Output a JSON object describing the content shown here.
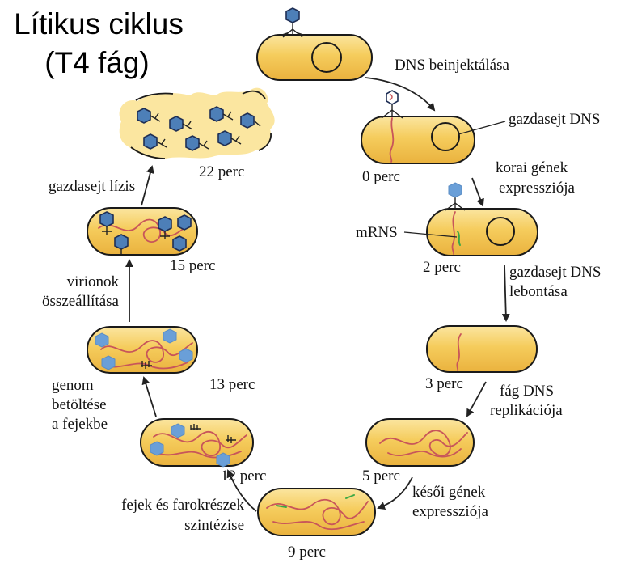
{
  "title": {
    "line1": "Lítikus ciklus",
    "line2": "(T4 fág)"
  },
  "times": {
    "t0": "0 perc",
    "t2": "2 perc",
    "t3": "3 perc",
    "t5": "5 perc",
    "t9": "9 perc",
    "t12": "12 perc",
    "t13": "13 perc",
    "t15": "15 perc",
    "t22": "22 perc"
  },
  "steps": {
    "dns_injection": "DNS beinjektálása",
    "early_genes": [
      "korai gének",
      "expressziója"
    ],
    "host_degradation": [
      "gazdasejt DNS",
      "lebontása"
    ],
    "phage_replication": [
      "fág DNS",
      "replikációja"
    ],
    "late_genes": [
      "késői gének",
      "expressziója"
    ],
    "heads_tails": [
      "fejek és farokrészek",
      "szintézise"
    ],
    "genome_loading": [
      "genom",
      "betöltése",
      "a fejekbe"
    ],
    "virion_assembly": [
      "virionok",
      "összeállítása"
    ],
    "lysis": "gazdasejt lízis"
  },
  "callouts": {
    "host_dna": "gazdasejt DNS",
    "mrna": "mRNS"
  },
  "colors": {
    "cell_fill": "#f3c24e",
    "cell_light": "#fbe6a0",
    "dna": "#c8555a",
    "mrna": "#3aa845",
    "head": "#6a9fd8"
  }
}
